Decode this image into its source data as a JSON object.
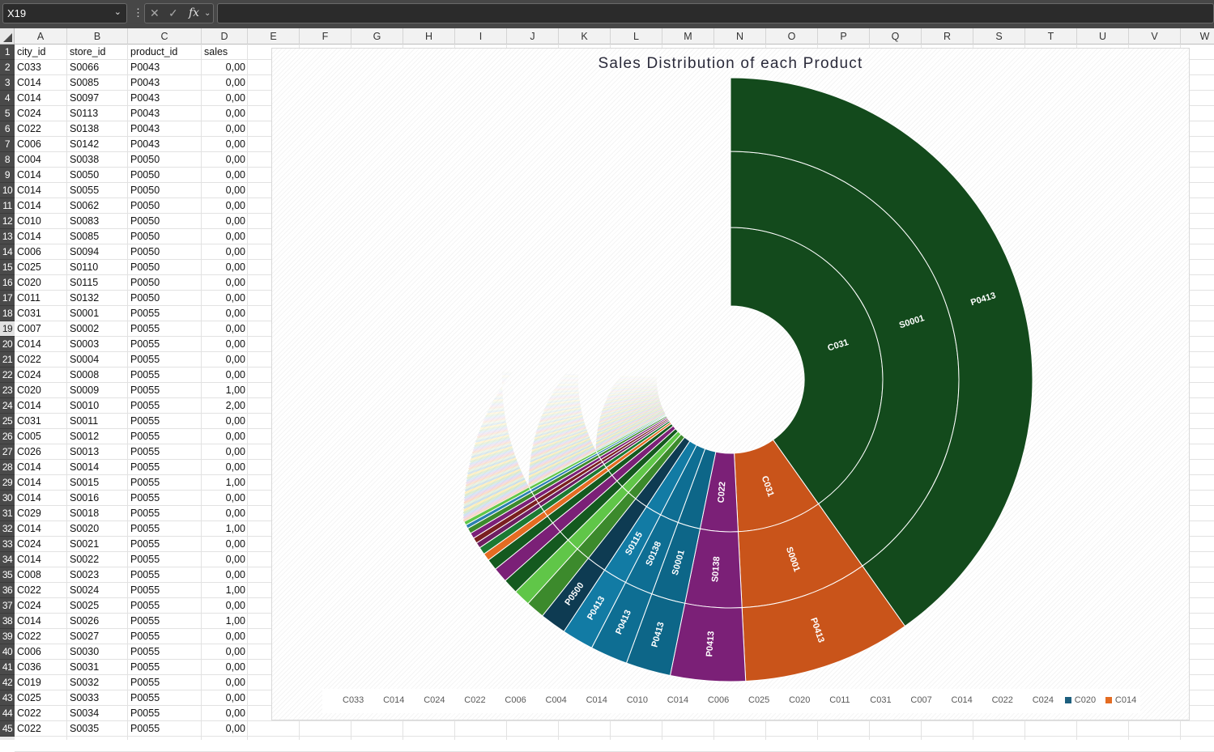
{
  "formula_bar": {
    "name_box": "X19",
    "cancel_glyph": "✕",
    "enter_glyph": "✓",
    "fx_label": "fx",
    "formula": ""
  },
  "columns": [
    "A",
    "B",
    "C",
    "D",
    "E",
    "F",
    "G",
    "H",
    "I",
    "J",
    "K",
    "L",
    "M",
    "N",
    "O",
    "P",
    "Q",
    "R",
    "S",
    "T",
    "U",
    "V",
    "W"
  ],
  "table": {
    "headers": [
      "city_id",
      "store_id",
      "product_id",
      "sales"
    ],
    "rows": [
      [
        "C033",
        "S0066",
        "P0043",
        "0,00"
      ],
      [
        "C014",
        "S0085",
        "P0043",
        "0,00"
      ],
      [
        "C014",
        "S0097",
        "P0043",
        "0,00"
      ],
      [
        "C024",
        "S0113",
        "P0043",
        "0,00"
      ],
      [
        "C022",
        "S0138",
        "P0043",
        "0,00"
      ],
      [
        "C006",
        "S0142",
        "P0043",
        "0,00"
      ],
      [
        "C004",
        "S0038",
        "P0050",
        "0,00"
      ],
      [
        "C014",
        "S0050",
        "P0050",
        "0,00"
      ],
      [
        "C014",
        "S0055",
        "P0050",
        "0,00"
      ],
      [
        "C014",
        "S0062",
        "P0050",
        "0,00"
      ],
      [
        "C010",
        "S0083",
        "P0050",
        "0,00"
      ],
      [
        "C014",
        "S0085",
        "P0050",
        "0,00"
      ],
      [
        "C006",
        "S0094",
        "P0050",
        "0,00"
      ],
      [
        "C025",
        "S0110",
        "P0050",
        "0,00"
      ],
      [
        "C020",
        "S0115",
        "P0050",
        "0,00"
      ],
      [
        "C011",
        "S0132",
        "P0050",
        "0,00"
      ],
      [
        "C031",
        "S0001",
        "P0055",
        "0,00"
      ],
      [
        "C007",
        "S0002",
        "P0055",
        "0,00"
      ],
      [
        "C014",
        "S0003",
        "P0055",
        "0,00"
      ],
      [
        "C022",
        "S0004",
        "P0055",
        "0,00"
      ],
      [
        "C024",
        "S0008",
        "P0055",
        "0,00"
      ],
      [
        "C020",
        "S0009",
        "P0055",
        "1,00"
      ],
      [
        "C014",
        "S0010",
        "P0055",
        "2,00"
      ],
      [
        "C031",
        "S0011",
        "P0055",
        "0,00"
      ],
      [
        "C005",
        "S0012",
        "P0055",
        "0,00"
      ],
      [
        "C026",
        "S0013",
        "P0055",
        "0,00"
      ],
      [
        "C014",
        "S0014",
        "P0055",
        "0,00"
      ],
      [
        "C014",
        "S0015",
        "P0055",
        "1,00"
      ],
      [
        "C014",
        "S0016",
        "P0055",
        "0,00"
      ],
      [
        "C029",
        "S0018",
        "P0055",
        "0,00"
      ],
      [
        "C014",
        "S0020",
        "P0055",
        "1,00"
      ],
      [
        "C024",
        "S0021",
        "P0055",
        "0,00"
      ],
      [
        "C014",
        "S0022",
        "P0055",
        "0,00"
      ],
      [
        "C008",
        "S0023",
        "P0055",
        "0,00"
      ],
      [
        "C022",
        "S0024",
        "P0055",
        "1,00"
      ],
      [
        "C024",
        "S0025",
        "P0055",
        "0,00"
      ],
      [
        "C014",
        "S0026",
        "P0055",
        "1,00"
      ],
      [
        "C022",
        "S0027",
        "P0055",
        "0,00"
      ],
      [
        "C006",
        "S0030",
        "P0055",
        "0,00"
      ],
      [
        "C036",
        "S0031",
        "P0055",
        "0,00"
      ],
      [
        "C019",
        "S0032",
        "P0055",
        "0,00"
      ],
      [
        "C025",
        "S0033",
        "P0055",
        "0,00"
      ],
      [
        "C022",
        "S0034",
        "P0055",
        "0,00"
      ],
      [
        "C022",
        "S0035",
        "P0055",
        "0,00"
      ]
    ]
  },
  "chart": {
    "title": "Sales Distribution of each Product",
    "legend": [
      {
        "label": "C033",
        "color": ""
      },
      {
        "label": "C014",
        "color": ""
      },
      {
        "label": "C024",
        "color": ""
      },
      {
        "label": "C022",
        "color": ""
      },
      {
        "label": "C006",
        "color": ""
      },
      {
        "label": "C004",
        "color": ""
      },
      {
        "label": "C014",
        "color": ""
      },
      {
        "label": "C010",
        "color": ""
      },
      {
        "label": "C014",
        "color": ""
      },
      {
        "label": "C006",
        "color": ""
      },
      {
        "label": "C025",
        "color": ""
      },
      {
        "label": "C020",
        "color": ""
      },
      {
        "label": "C011",
        "color": ""
      },
      {
        "label": "C031",
        "color": ""
      },
      {
        "label": "C007",
        "color": ""
      },
      {
        "label": "C014",
        "color": ""
      },
      {
        "label": "C022",
        "color": ""
      },
      {
        "label": "C024",
        "color": ""
      },
      {
        "label": "C020",
        "color": "#1d5f7e"
      },
      {
        "label": "C014",
        "color": "#e46c22"
      }
    ]
  },
  "chart_data": {
    "type": "sunburst",
    "title": "Sales Distribution of each Product",
    "levels": [
      "city_id",
      "store_id",
      "product_id"
    ],
    "segments": [
      {
        "city": "C031",
        "store": "S0001",
        "product": "P0413",
        "share": 0.402,
        "color": "#134a1c"
      },
      {
        "city": "C031",
        "store": "S0001",
        "product": "P0413",
        "share": 0.09,
        "color": "#c9541a"
      },
      {
        "city": "C022",
        "store": "S0138",
        "product": "P0413",
        "share": 0.04,
        "color": "#7b2077"
      },
      {
        "city": "",
        "store": "S0001",
        "product": "P0413",
        "share": 0.024,
        "color": "#0d6688"
      },
      {
        "city": "",
        "store": "S0138",
        "product": "P0413",
        "share": 0.02,
        "color": "#0e6e93"
      },
      {
        "city": "",
        "store": "S0115",
        "product": "P0413",
        "share": 0.017,
        "color": "#127ba4"
      },
      {
        "city": "",
        "store": "",
        "product": "P0500",
        "share": 0.014,
        "color": "#0e3b52"
      },
      {
        "city": "",
        "store": "",
        "product": "",
        "share": 0.01,
        "color": "#3c8a2c"
      },
      {
        "city": "",
        "store": "",
        "product": "",
        "share": 0.009,
        "color": "#60c648"
      },
      {
        "city": "",
        "store": "",
        "product": "",
        "share": 0.008,
        "color": "#145a1f"
      },
      {
        "city": "",
        "store": "",
        "product": "",
        "share": 0.008,
        "color": "#7b2077"
      },
      {
        "city": "",
        "store": "",
        "product": "",
        "share": 0.006,
        "color": "#145a1f"
      },
      {
        "city": "",
        "store": "",
        "product": "",
        "share": 0.004,
        "color": "#e46c22"
      },
      {
        "city": "",
        "store": "",
        "product": "",
        "share": 0.004,
        "color": "#1b7a33"
      },
      {
        "city": "",
        "store": "",
        "product": "",
        "share": 0.003,
        "color": "#6e1f62"
      },
      {
        "city": "",
        "store": "",
        "product": "",
        "share": 0.003,
        "color": "#7a2020"
      },
      {
        "city": "",
        "store": "",
        "product": "",
        "share": 0.003,
        "color": "#7b2077"
      },
      {
        "city": "",
        "store": "",
        "product": "",
        "share": 0.003,
        "color": "#3c8a2c"
      },
      {
        "city": "",
        "store": "",
        "product": "",
        "share": 0.002,
        "color": "#2b7fb0"
      },
      {
        "city": "",
        "store": "",
        "product": "",
        "share": 0.002,
        "color": "#60c648"
      }
    ],
    "legend_position": "bottom"
  }
}
